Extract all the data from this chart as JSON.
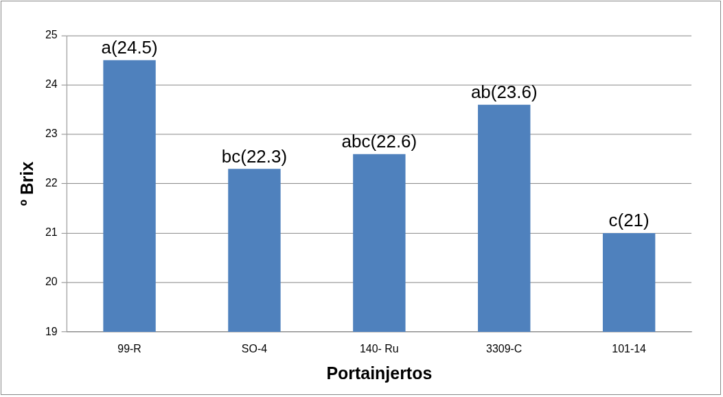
{
  "chart_data": {
    "type": "bar",
    "xlabel": "Portainjertos",
    "ylabel": "º Brix",
    "categories": [
      "99-R",
      "SO-4",
      "140- Ru",
      "3309-C",
      "101-14"
    ],
    "values": [
      24.5,
      22.3,
      22.6,
      23.6,
      21
    ],
    "value_labels": [
      "a(24.5)",
      "bc(22.3)",
      "abc(22.6)",
      "ab(23.6)",
      "c(21)"
    ],
    "color": "#4f81bd",
    "ylim": [
      19,
      25
    ],
    "yticks": [
      19,
      20,
      21,
      22,
      23,
      24,
      25
    ],
    "grid": "y",
    "legend": false
  }
}
